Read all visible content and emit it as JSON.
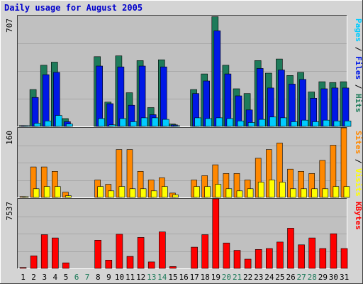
{
  "chart_data": [
    {
      "type": "bar",
      "title": "Daily usage for August 2005",
      "panel": "pages-files-hits",
      "ymax_label": "707",
      "ylim": [
        0,
        707
      ],
      "categories": [
        "1",
        "2",
        "3",
        "4",
        "5",
        "6",
        "7",
        "8",
        "9",
        "10",
        "11",
        "12",
        "13",
        "14",
        "15",
        "16",
        "17",
        "18",
        "19",
        "20",
        "21",
        "22",
        "23",
        "24",
        "25",
        "26",
        "27",
        "28",
        "29",
        "30",
        "31"
      ],
      "weekend_days": [
        "6",
        "7",
        "13",
        "14",
        "20",
        "21",
        "27",
        "28"
      ],
      "series": [
        {
          "name": "Hits",
          "color": "#1e7b5a",
          "values": [
            5,
            235,
            390,
            410,
            50,
            0,
            0,
            445,
            155,
            450,
            215,
            420,
            120,
            425,
            15,
            0,
            235,
            335,
            700,
            390,
            240,
            210,
            420,
            340,
            430,
            325,
            345,
            220,
            285,
            280,
            285
          ]
        },
        {
          "name": "Files",
          "color": "#0018e6",
          "values": [
            2,
            185,
            330,
            345,
            30,
            0,
            0,
            385,
            145,
            380,
            135,
            385,
            75,
            380,
            10,
            0,
            210,
            290,
            610,
            335,
            195,
            105,
            370,
            245,
            360,
            270,
            300,
            180,
            240,
            245,
            245
          ]
        },
        {
          "name": "Pages",
          "color": "#00ccff",
          "values": [
            1,
            20,
            35,
            70,
            15,
            0,
            0,
            50,
            10,
            50,
            30,
            55,
            55,
            45,
            5,
            0,
            55,
            50,
            55,
            50,
            35,
            25,
            45,
            60,
            55,
            30,
            40,
            30,
            40,
            35,
            35
          ]
        }
      ],
      "right_label": [
        {
          "text": "Pages",
          "color": "#00ccff"
        },
        {
          "text": " / ",
          "color": "#000000"
        },
        {
          "text": "Files",
          "color": "#0018e6"
        },
        {
          "text": " / ",
          "color": "#000000"
        },
        {
          "text": "Hits",
          "color": "#1e7b5a"
        }
      ]
    },
    {
      "type": "bar",
      "panel": "sites-visits",
      "ymax_label": "160",
      "ylim": [
        0,
        160
      ],
      "categories": [
        "1",
        "2",
        "3",
        "4",
        "5",
        "6",
        "7",
        "8",
        "9",
        "10",
        "11",
        "12",
        "13",
        "14",
        "15",
        "16",
        "17",
        "18",
        "19",
        "20",
        "21",
        "22",
        "23",
        "24",
        "25",
        "26",
        "27",
        "28",
        "29",
        "30",
        "31"
      ],
      "series": [
        {
          "name": "Visits",
          "color": "#ff8800",
          "values": [
            2,
            70,
            70,
            60,
            12,
            0,
            0,
            40,
            30,
            110,
            110,
            60,
            40,
            45,
            10,
            0,
            40,
            50,
            75,
            55,
            55,
            40,
            90,
            110,
            125,
            65,
            60,
            55,
            85,
            120,
            160
          ]
        },
        {
          "name": "Sites",
          "color": "#ffff00",
          "values": [
            1,
            20,
            25,
            25,
            4,
            0,
            0,
            25,
            15,
            25,
            20,
            20,
            15,
            25,
            6,
            0,
            25,
            25,
            30,
            20,
            15,
            20,
            35,
            40,
            35,
            20,
            20,
            20,
            20,
            25,
            25
          ]
        }
      ],
      "right_label": [
        {
          "text": "Sites",
          "color": "#ff8800"
        },
        {
          "text": " / ",
          "color": "#000000"
        },
        {
          "text": "Visits",
          "color": "#ffff00"
        }
      ]
    },
    {
      "type": "bar",
      "panel": "kbytes",
      "ymax_label": "7537",
      "ylim": [
        0,
        7537
      ],
      "categories": [
        "1",
        "2",
        "3",
        "4",
        "5",
        "6",
        "7",
        "8",
        "9",
        "10",
        "11",
        "12",
        "13",
        "14",
        "15",
        "16",
        "17",
        "18",
        "19",
        "20",
        "21",
        "22",
        "23",
        "24",
        "25",
        "26",
        "27",
        "28",
        "29",
        "30",
        "31"
      ],
      "series": [
        {
          "name": "KBytes",
          "color": "#ff0000",
          "values": [
            100,
            1350,
            3650,
            3300,
            600,
            0,
            0,
            3050,
            900,
            3700,
            1300,
            3350,
            700,
            3950,
            200,
            0,
            2300,
            3650,
            7537,
            2750,
            1950,
            1000,
            2050,
            2150,
            2850,
            4350,
            2550,
            3300,
            2150,
            3750,
            2150
          ]
        }
      ],
      "right_label": [
        {
          "text": "KBytes",
          "color": "#ff0000"
        }
      ]
    }
  ]
}
